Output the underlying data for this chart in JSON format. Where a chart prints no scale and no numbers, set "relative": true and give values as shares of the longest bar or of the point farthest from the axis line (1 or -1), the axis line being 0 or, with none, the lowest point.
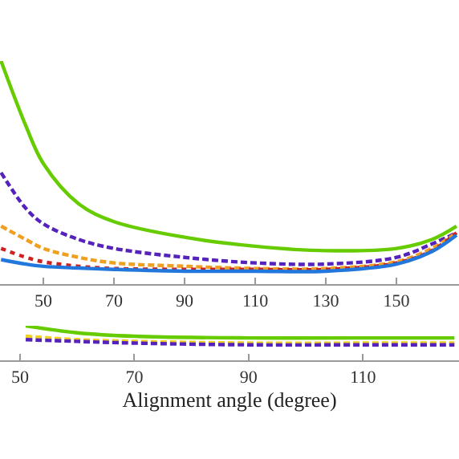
{
  "chart_data": [
    {
      "type": "line",
      "relative": true,
      "x": [
        38,
        45,
        50,
        60,
        70,
        90,
        110,
        130,
        150,
        160,
        167
      ],
      "xlim": [
        37.7,
        167.7
      ],
      "xticks": [
        50,
        70,
        90,
        110,
        130,
        150
      ],
      "tick_labels": "x",
      "marker": "none",
      "series": [
        {
          "color": "#66cc00",
          "line_style": "solid",
          "values": [
            1.0,
            0.71,
            0.54,
            0.36,
            0.28,
            0.21,
            0.17,
            0.15,
            0.16,
            0.2,
            0.26
          ]
        },
        {
          "color": "#5522bb",
          "line_style": "dashed",
          "values": [
            0.5,
            0.34,
            0.27,
            0.2,
            0.16,
            0.12,
            0.095,
            0.09,
            0.12,
            0.18,
            0.23
          ]
        },
        {
          "color": "#f0a020",
          "line_style": "dashed",
          "values": [
            0.26,
            0.2,
            0.16,
            0.12,
            0.095,
            0.08,
            0.07,
            0.07,
            0.1,
            0.16,
            0.23
          ]
        },
        {
          "color": "#cc2222",
          "line_style": "dotted",
          "values": [
            0.16,
            0.12,
            0.1,
            0.08,
            0.07,
            0.066,
            0.066,
            0.066,
            0.095,
            0.15,
            0.23
          ]
        },
        {
          "color": "#2277dd",
          "line_style": "solid",
          "values": [
            0.11,
            0.09,
            0.08,
            0.072,
            0.066,
            0.058,
            0.058,
            0.058,
            0.09,
            0.146,
            0.22
          ]
        }
      ]
    },
    {
      "type": "line",
      "relative": true,
      "xlabel": "Alignment angle (degree)",
      "x": [
        51,
        60,
        70,
        90,
        110,
        126
      ],
      "xlim": [
        46.5,
        126.8
      ],
      "xticks": [
        50,
        70,
        90,
        110
      ],
      "tick_labels": "x",
      "marker": "none",
      "series": [
        {
          "color": "#66cc00",
          "line_style": "solid",
          "values": [
            1.0,
            0.8,
            0.7,
            0.65,
            0.65,
            0.65
          ]
        },
        {
          "color": "#f0d020",
          "line_style": "dashed",
          "values": [
            0.7,
            0.6,
            0.55,
            0.5,
            0.5,
            0.5
          ]
        },
        {
          "color": "#5522bb",
          "line_style": "dashed",
          "values": [
            0.6,
            0.55,
            0.5,
            0.45,
            0.45,
            0.45
          ]
        }
      ]
    }
  ]
}
